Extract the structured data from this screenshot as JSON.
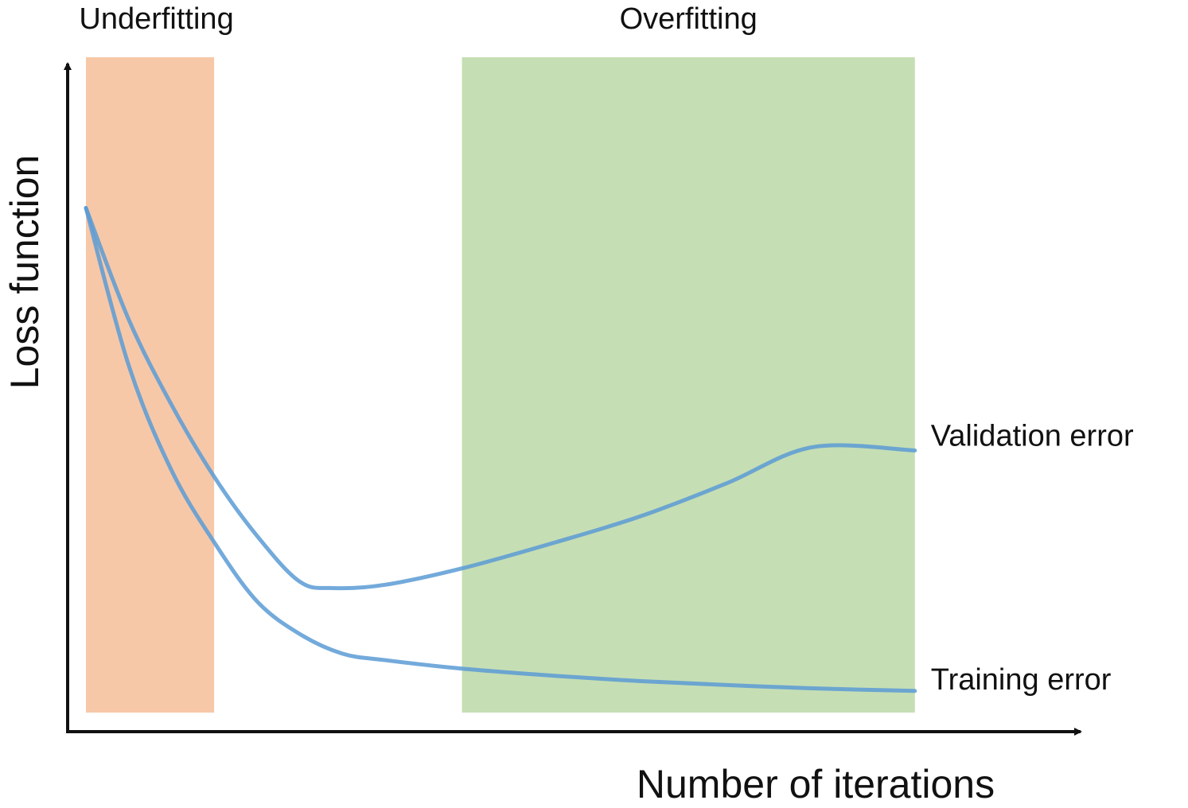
{
  "chart_data": {
    "type": "line",
    "title": "",
    "xlabel": "Number of iterations",
    "ylabel": "Loss function",
    "xlim": [
      0,
      100
    ],
    "ylim": [
      0,
      100
    ],
    "grid": false,
    "ticks": false,
    "regions": [
      {
        "label": "Underfitting",
        "x_start": 0,
        "x_end": 15,
        "color": "#f7c8a8"
      },
      {
        "label": "Overfitting",
        "x_start": 44,
        "x_end": 97,
        "color": "#c6deb4"
      }
    ],
    "series": [
      {
        "name": "Validation error",
        "color": "#5b9bd5",
        "x": [
          0,
          5,
          10,
          15,
          20,
          25,
          29,
          35,
          44,
          55,
          65,
          75,
          85,
          97
        ],
        "y": [
          77,
          60,
          47,
          36,
          27,
          20,
          19,
          19.5,
          22,
          26,
          30,
          35,
          40.5,
          40
        ]
      },
      {
        "name": "Training error",
        "color": "#5b9bd5",
        "x": [
          0,
          5,
          10,
          15,
          20,
          25,
          30,
          35,
          44,
          55,
          65,
          75,
          85,
          97
        ],
        "y": [
          77,
          53,
          37,
          26,
          17,
          12,
          9,
          8,
          6.7,
          5.6,
          4.8,
          4.2,
          3.7,
          3.3
        ]
      }
    ]
  }
}
